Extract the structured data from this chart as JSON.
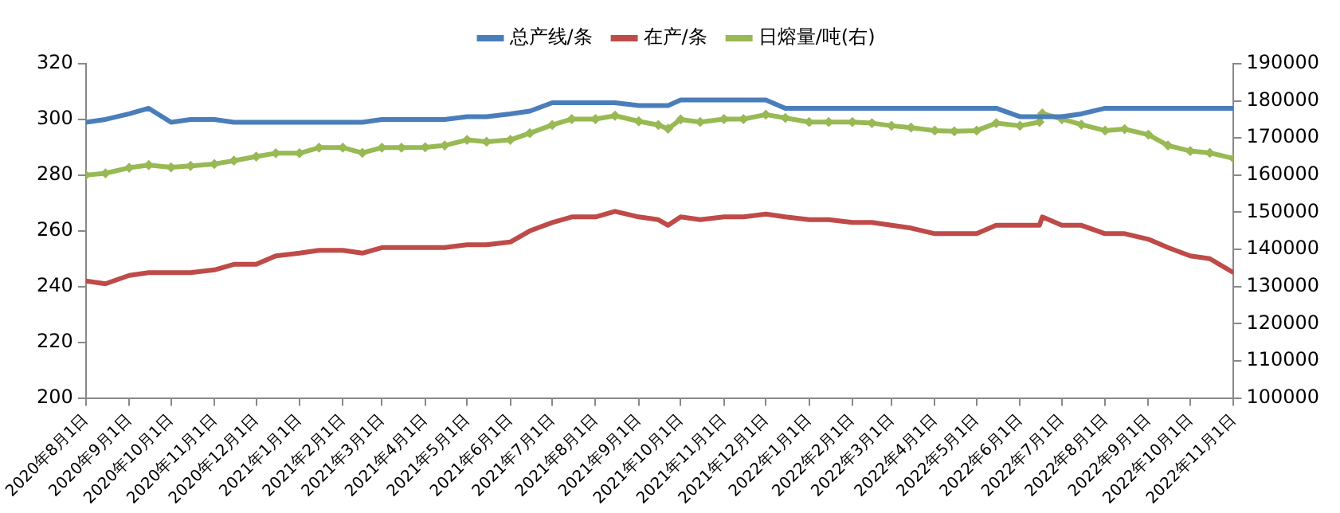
{
  "chart_data": {
    "type": "line",
    "x": [
      "2020-08-01",
      "2020-08-15",
      "2020-09-01",
      "2020-09-15",
      "2020-10-01",
      "2020-10-15",
      "2020-11-01",
      "2020-11-15",
      "2020-12-01",
      "2020-12-15",
      "2021-01-01",
      "2021-01-15",
      "2021-02-01",
      "2021-02-15",
      "2021-03-01",
      "2021-03-15",
      "2021-04-01",
      "2021-04-15",
      "2021-05-01",
      "2021-05-15",
      "2021-06-01",
      "2021-06-15",
      "2021-07-01",
      "2021-07-15",
      "2021-08-01",
      "2021-08-15",
      "2021-09-01",
      "2021-09-15",
      "2021-09-22",
      "2021-10-01",
      "2021-10-15",
      "2021-11-01",
      "2021-11-15",
      "2021-12-01",
      "2021-12-15",
      "2022-01-01",
      "2022-01-15",
      "2022-02-01",
      "2022-02-15",
      "2022-03-01",
      "2022-03-15",
      "2022-04-01",
      "2022-04-15",
      "2022-05-01",
      "2022-05-15",
      "2022-06-01",
      "2022-06-15",
      "2022-06-17",
      "2022-07-01",
      "2022-07-15",
      "2022-08-01",
      "2022-08-15",
      "2022-09-01",
      "2022-09-15",
      "2022-10-01",
      "2022-10-15",
      "2022-11-01"
    ],
    "series": [
      {
        "name": "总产线/条",
        "color": "#4a7ebb",
        "values": [
          299,
          300,
          302,
          304,
          299,
          300,
          300,
          299,
          299,
          299,
          299,
          299,
          299,
          299,
          300,
          300,
          300,
          300,
          301,
          301,
          302,
          303,
          306,
          306,
          306,
          306,
          305,
          305,
          305,
          307,
          307,
          307,
          307,
          307,
          304,
          304,
          304,
          304,
          304,
          304,
          304,
          304,
          304,
          304,
          304,
          301,
          301,
          301,
          301,
          302,
          304,
          304,
          304,
          304,
          304,
          304,
          304
        ]
      },
      {
        "name": "在产/条",
        "color": "#be4b48",
        "values": [
          242,
          241,
          244,
          245,
          245,
          245,
          246,
          248,
          248,
          251,
          252,
          253,
          253,
          252,
          254,
          254,
          254,
          254,
          255,
          255,
          256,
          260,
          263,
          265,
          265,
          267,
          265,
          264,
          262,
          265,
          264,
          265,
          265,
          266,
          265,
          264,
          264,
          263,
          263,
          262,
          261,
          259,
          259,
          259,
          262,
          262,
          262,
          265,
          262,
          262,
          259,
          259,
          257,
          254,
          251,
          250,
          245
        ]
      },
      {
        "name": "日熔量/吨(右)",
        "color": "#98b954",
        "axis": "y2",
        "marker": "diamond",
        "values": [
          160000,
          160500,
          162000,
          162700,
          162100,
          162500,
          163000,
          163900,
          165000,
          165900,
          165900,
          167400,
          167400,
          166000,
          167400,
          167400,
          167500,
          168000,
          169500,
          169000,
          169500,
          171300,
          173500,
          175100,
          175100,
          176000,
          174500,
          173500,
          172500,
          175000,
          174300,
          175100,
          175100,
          176300,
          175400,
          174300,
          174300,
          174300,
          174000,
          173300,
          172800,
          172000,
          171800,
          172000,
          174000,
          173300,
          174300,
          176600,
          175100,
          173600,
          172000,
          172400,
          170900,
          168000,
          166500,
          166000,
          164500
        ]
      }
    ],
    "xlim": [
      "2020-08-01",
      "2022-11-01"
    ],
    "xticks": [
      {
        "value": "2020-08-01",
        "label": "2020年8月1日"
      },
      {
        "value": "2020-09-01",
        "label": "2020年9月1日"
      },
      {
        "value": "2020-10-01",
        "label": "2020年10月1日"
      },
      {
        "value": "2020-11-01",
        "label": "2020年11月1日"
      },
      {
        "value": "2020-12-01",
        "label": "2020年12月1日"
      },
      {
        "value": "2021-01-01",
        "label": "2021年1月1日"
      },
      {
        "value": "2021-02-01",
        "label": "2021年2月1日"
      },
      {
        "value": "2021-03-01",
        "label": "2021年3月1日"
      },
      {
        "value": "2021-04-01",
        "label": "2021年4月1日"
      },
      {
        "value": "2021-05-01",
        "label": "2021年5月1日"
      },
      {
        "value": "2021-06-01",
        "label": "2021年6月1日"
      },
      {
        "value": "2021-07-01",
        "label": "2021年7月1日"
      },
      {
        "value": "2021-08-01",
        "label": "2021年8月1日"
      },
      {
        "value": "2021-09-01",
        "label": "2021年9月1日"
      },
      {
        "value": "2021-10-01",
        "label": "2021年10月1日"
      },
      {
        "value": "2021-11-01",
        "label": "2021年11月1日"
      },
      {
        "value": "2021-12-01",
        "label": "2021年12月1日"
      },
      {
        "value": "2022-01-01",
        "label": "2022年1月1日"
      },
      {
        "value": "2022-02-01",
        "label": "2022年2月1日"
      },
      {
        "value": "2022-03-01",
        "label": "2022年3月1日"
      },
      {
        "value": "2022-04-01",
        "label": "2022年4月1日"
      },
      {
        "value": "2022-05-01",
        "label": "2022年5月1日"
      },
      {
        "value": "2022-06-01",
        "label": "2022年6月1日"
      },
      {
        "value": "2022-07-01",
        "label": "2022年7月1日"
      },
      {
        "value": "2022-08-01",
        "label": "2022年8月1日"
      },
      {
        "value": "2022-09-01",
        "label": "2022年9月1日"
      },
      {
        "value": "2022-10-01",
        "label": "2022年10月1日"
      },
      {
        "value": "2022-11-01",
        "label": "2022年11月1日"
      }
    ],
    "ylim": [
      200,
      320
    ],
    "yticks": [
      200,
      220,
      240,
      260,
      280,
      300,
      320
    ],
    "y2lim": [
      100000,
      190000
    ],
    "y2ticks": [
      100000,
      110000,
      120000,
      130000,
      140000,
      150000,
      160000,
      170000,
      180000,
      190000
    ],
    "legend": "top",
    "grid": false
  }
}
